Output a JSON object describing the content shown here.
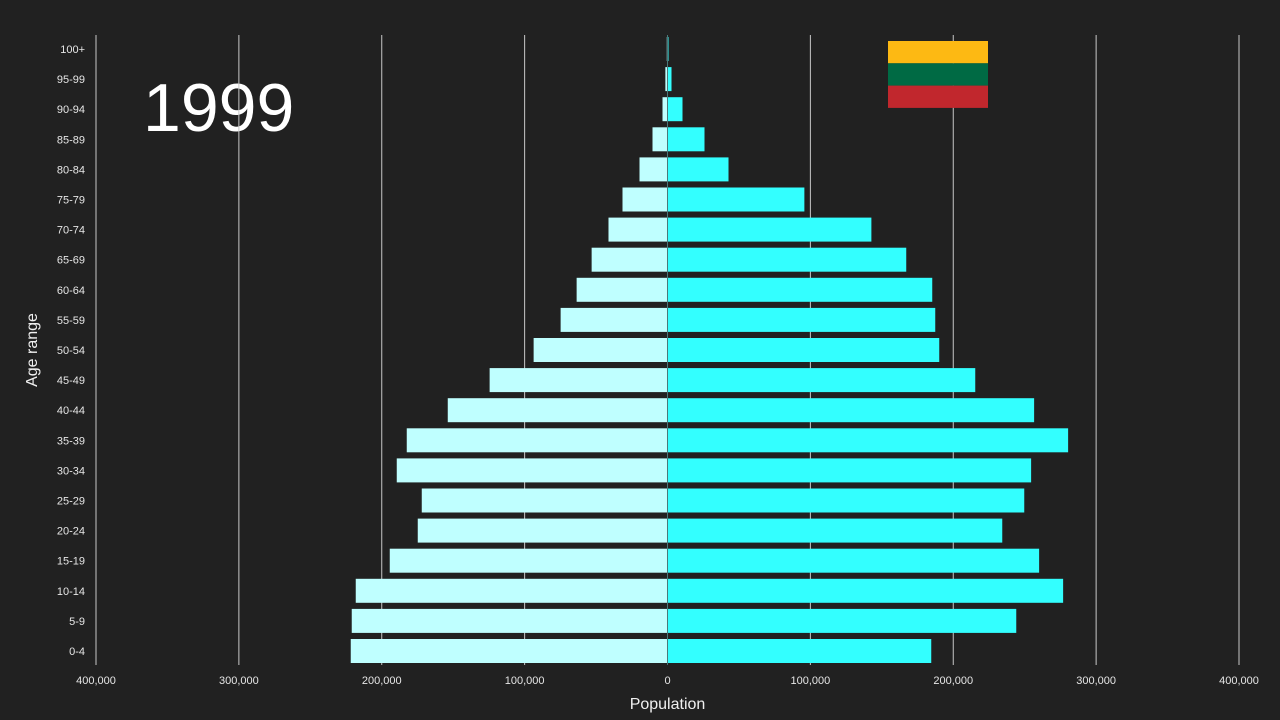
{
  "chart_data": {
    "type": "bar",
    "orientation": "horizontal-population-pyramid",
    "annotation": "1999",
    "flag": {
      "country": "Lithuania",
      "colors": [
        "#fdb913",
        "#006a44",
        "#c1272d"
      ]
    },
    "xlabel": "Population",
    "ylabel": "Age range",
    "xlim": [
      -400000,
      400000
    ],
    "x_tick_values": [
      -400000,
      -300000,
      -200000,
      -100000,
      0,
      100000,
      200000,
      300000,
      400000
    ],
    "x_tick_labels": [
      "400,000",
      "300,000",
      "200,000",
      "100,000",
      "0",
      "100,000",
      "200,000",
      "300,000",
      "400,000"
    ],
    "grid": "vertical",
    "categories": [
      "0-4",
      "5-9",
      "10-14",
      "15-19",
      "20-24",
      "25-29",
      "30-34",
      "35-39",
      "40-44",
      "45-49",
      "50-54",
      "55-59",
      "60-64",
      "65-69",
      "70-74",
      "75-79",
      "80-84",
      "85-89",
      "90-94",
      "95-99",
      "100+"
    ],
    "series": [
      {
        "side": "left",
        "color": "#bfffff",
        "values": [
          221700,
          221000,
          218200,
          194400,
          174800,
          172000,
          189500,
          182500,
          153800,
          124500,
          93700,
          74800,
          63600,
          53100,
          41300,
          31500,
          19600,
          10500,
          3500,
          1500,
          500
        ]
      },
      {
        "side": "right",
        "color": "#33ffff",
        "values": [
          184600,
          244100,
          276900,
          260100,
          234300,
          249700,
          254500,
          280400,
          256600,
          215400,
          190200,
          187400,
          185300,
          167100,
          142700,
          95800,
          42700,
          25900,
          10500,
          2800,
          700
        ]
      }
    ]
  }
}
